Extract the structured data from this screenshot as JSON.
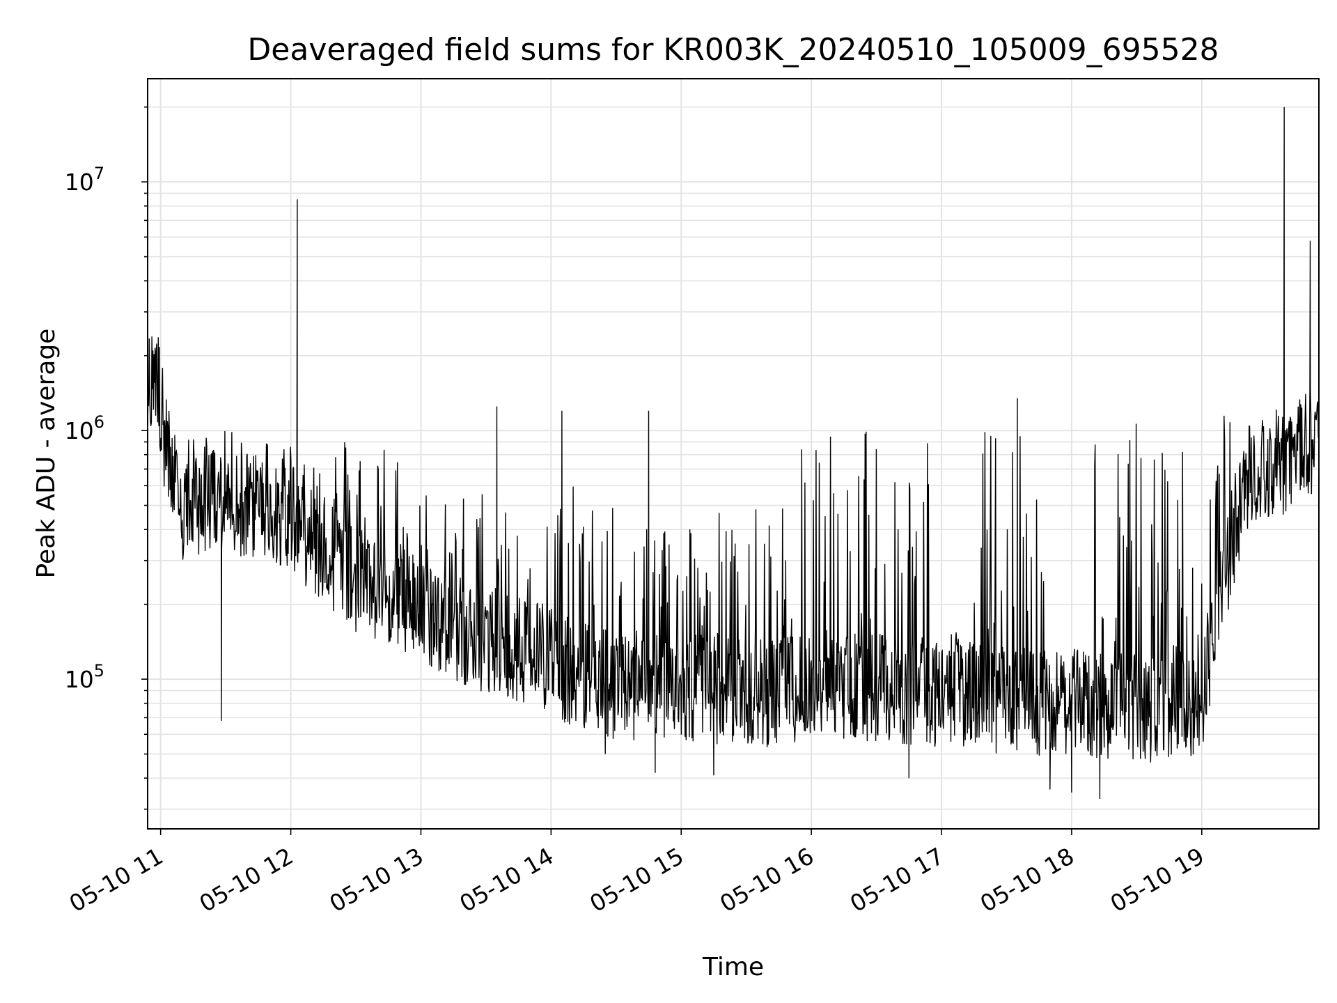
{
  "chart_data": {
    "type": "line",
    "title": "Deaveraged field sums for KR003K_20240510_105009_695528",
    "xlabel": "Time",
    "ylabel": "Peak ADU - average",
    "y_scale": "log",
    "ylim": [
      25000,
      26000000
    ],
    "xlim": [
      "2024-05-10 10:54",
      "2024-05-10 19:54"
    ],
    "grid": true,
    "line_color": "#000000",
    "grid_color": "#e3e3e3",
    "x_ticks": [
      {
        "value": "2024-05-10 11:00",
        "label": "05-10 11"
      },
      {
        "value": "2024-05-10 12:00",
        "label": "05-10 12"
      },
      {
        "value": "2024-05-10 13:00",
        "label": "05-10 13"
      },
      {
        "value": "2024-05-10 14:00",
        "label": "05-10 14"
      },
      {
        "value": "2024-05-10 15:00",
        "label": "05-10 15"
      },
      {
        "value": "2024-05-10 16:00",
        "label": "05-10 16"
      },
      {
        "value": "2024-05-10 17:00",
        "label": "05-10 17"
      },
      {
        "value": "2024-05-10 18:00",
        "label": "05-10 18"
      },
      {
        "value": "2024-05-10 19:00",
        "label": "05-10 19"
      }
    ],
    "y_ticks": [
      {
        "value": 100000,
        "base": "10",
        "exp": "5"
      },
      {
        "value": 1000000,
        "base": "10",
        "exp": "6"
      },
      {
        "value": 10000000,
        "base": "10",
        "exp": "7"
      }
    ],
    "series": [
      {
        "x": [
          "2024-05-10 10:54",
          "2024-05-10 10:58",
          "2024-05-10 11:02",
          "2024-05-10 11:06",
          "2024-05-10 11:10",
          "2024-05-10 11:20",
          "2024-05-10 11:30",
          "2024-05-10 11:40",
          "2024-05-10 11:50",
          "2024-05-10 12:00",
          "2024-05-10 12:03",
          "2024-05-10 12:10",
          "2024-05-10 12:20",
          "2024-05-10 12:30",
          "2024-05-10 12:40",
          "2024-05-10 12:50",
          "2024-05-10 13:00",
          "2024-05-10 13:15",
          "2024-05-10 13:30",
          "2024-05-10 13:45",
          "2024-05-10 14:00",
          "2024-05-10 14:03",
          "2024-05-10 14:15",
          "2024-05-10 14:25",
          "2024-05-10 14:30",
          "2024-05-10 14:45",
          "2024-05-10 15:00",
          "2024-05-10 15:15",
          "2024-05-10 15:30",
          "2024-05-10 15:45",
          "2024-05-10 16:00",
          "2024-05-10 16:15",
          "2024-05-10 16:30",
          "2024-05-10 16:45",
          "2024-05-10 17:00",
          "2024-05-10 17:15",
          "2024-05-10 17:30",
          "2024-05-10 17:45",
          "2024-05-10 18:00",
          "2024-05-10 18:15",
          "2024-05-10 18:30",
          "2024-05-10 18:45",
          "2024-05-10 19:00",
          "2024-05-10 19:10",
          "2024-05-10 19:20",
          "2024-05-10 19:30",
          "2024-05-10 19:40",
          "2024-05-10 19:45",
          "2024-05-10 19:50",
          "2024-05-10 19:54"
        ],
        "y": [
          1400000,
          1700000,
          900000,
          550000,
          450000,
          520000,
          500000,
          480000,
          470000,
          450000,
          420000,
          350000,
          300000,
          250000,
          230000,
          210000,
          180000,
          160000,
          140000,
          130000,
          120000,
          110000,
          100000,
          95000,
          90000,
          88000,
          90000,
          88000,
          87000,
          85000,
          95000,
          92000,
          90000,
          88000,
          85000,
          83000,
          80000,
          78000,
          78000,
          76000,
          75000,
          74000,
          80000,
          250000,
          600000,
          700000,
          750000,
          800000,
          900000,
          800000
        ],
        "spike_count": 2200,
        "spike_high": [
          {
            "from": "2024-05-10 11:00",
            "to": "2024-05-10 12:50",
            "max": 1000000
          },
          {
            "from": "2024-05-10 12:50",
            "to": "2024-05-10 14:25",
            "max": 600000
          },
          {
            "from": "2024-05-10 14:25",
            "to": "2024-05-10 15:55",
            "max": 500000
          },
          {
            "from": "2024-05-10 15:55",
            "to": "2024-05-10 17:00",
            "max": 1200000
          },
          {
            "from": "2024-05-10 17:00",
            "to": "2024-05-10 17:10",
            "max": 160000
          },
          {
            "from": "2024-05-10 17:10",
            "to": "2024-05-10 17:50",
            "max": 1100000
          },
          {
            "from": "2024-05-10 17:50",
            "to": "2024-05-10 18:10",
            "max": 130000
          },
          {
            "from": "2024-05-10 18:10",
            "to": "2024-05-10 19:10",
            "max": 1150000
          },
          {
            "from": "2024-05-10 19:10",
            "to": "2024-05-10 19:54",
            "max": 1200000
          }
        ],
        "peaks": [
          {
            "x": "2024-05-10 12:03",
            "y": 8500000
          },
          {
            "x": "2024-05-10 19:38",
            "y": 20000000
          },
          {
            "x": "2024-05-10 19:50",
            "y": 5800000
          },
          {
            "x": "2024-05-10 13:35",
            "y": 1250000
          },
          {
            "x": "2024-05-10 14:05",
            "y": 1200000
          },
          {
            "x": "2024-05-10 14:45",
            "y": 1200000
          },
          {
            "x": "2024-05-10 17:35",
            "y": 1350000
          },
          {
            "x": "2024-05-10 10:56",
            "y": 2300000
          }
        ],
        "dips": [
          {
            "x": "2024-05-10 11:28",
            "y": 68000
          },
          {
            "x": "2024-05-10 14:25",
            "y": 50000
          },
          {
            "x": "2024-05-10 14:48",
            "y": 42000
          },
          {
            "x": "2024-05-10 15:15",
            "y": 41000
          },
          {
            "x": "2024-05-10 16:45",
            "y": 40000
          },
          {
            "x": "2024-05-10 17:50",
            "y": 36000
          },
          {
            "x": "2024-05-10 18:00",
            "y": 35000
          },
          {
            "x": "2024-05-10 18:13",
            "y": 33000
          }
        ]
      }
    ]
  }
}
